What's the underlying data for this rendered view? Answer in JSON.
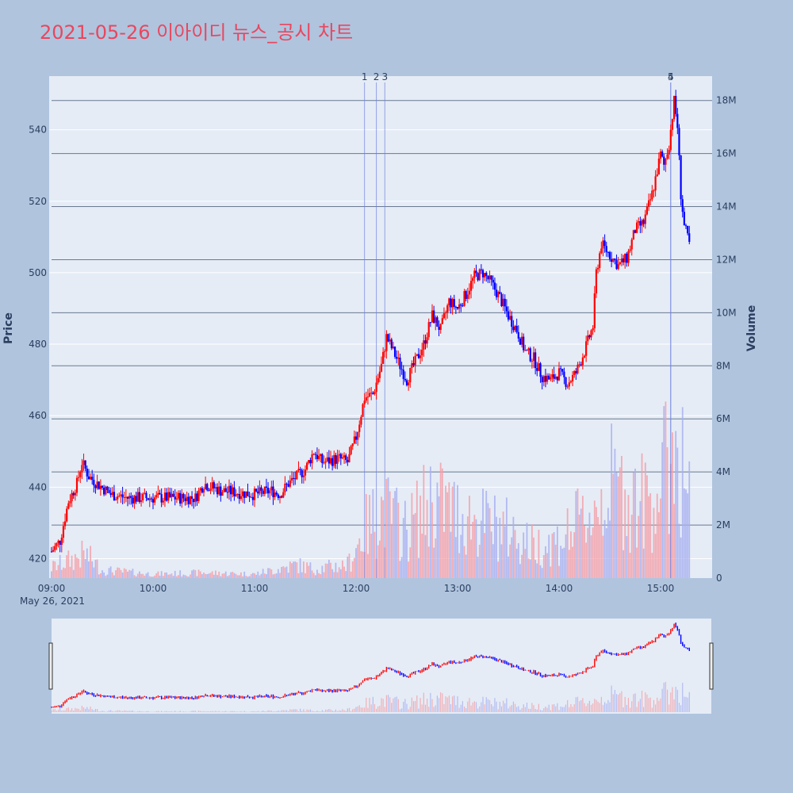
{
  "title": "2021-05-26 이아이디 뉴스_공시 차트",
  "colors": {
    "background": "#b0c4de",
    "plot_bg": "#e5ecf6",
    "title": "#e8475f",
    "up": "#ff0000",
    "down": "#0000ff",
    "up_volume": "#f4a0a8",
    "down_volume": "#a8b0f0",
    "marker_line": "#7080e0",
    "volume_grid": "#6a7890"
  },
  "chart_data": {
    "type": "candlestick",
    "price_axis": {
      "title": "Price",
      "range": [
        415,
        555
      ],
      "ticks": [
        420,
        440,
        460,
        480,
        500,
        520,
        540
      ]
    },
    "volume_axis": {
      "title": "Volume",
      "range": [
        0,
        18200000
      ],
      "ticks": [
        0,
        2000000,
        4000000,
        6000000,
        8000000,
        10000000,
        12000000,
        14000000,
        16000000,
        18000000
      ],
      "tick_labels": [
        "0",
        "2M",
        "4M",
        "6M",
        "8M",
        "10M",
        "12M",
        "14M",
        "16M",
        "18M"
      ]
    },
    "x_axis": {
      "range": [
        "09:00",
        "15:30"
      ],
      "ticks": [
        "09:00",
        "10:00",
        "11:00",
        "12:00",
        "13:00",
        "14:00",
        "15:00"
      ],
      "date_label": "May 26, 2021"
    },
    "news_markers": [
      {
        "label": "1",
        "time": "12:05"
      },
      {
        "label": "2",
        "time": "12:12"
      },
      {
        "label": "3",
        "time": "12:17"
      },
      {
        "label": "4",
        "time": "15:06"
      },
      {
        "label": "5",
        "time": "15:06"
      }
    ],
    "price_keypoints": [
      [
        "09:00",
        422
      ],
      [
        "09:05",
        425
      ],
      [
        "09:10",
        436
      ],
      [
        "09:15",
        441
      ],
      [
        "09:18",
        447
      ],
      [
        "09:22",
        443
      ],
      [
        "09:27",
        441
      ],
      [
        "09:35",
        438
      ],
      [
        "09:45",
        437
      ],
      [
        "10:00",
        437
      ],
      [
        "10:15",
        437
      ],
      [
        "10:25",
        437
      ],
      [
        "10:30",
        441
      ],
      [
        "10:40",
        439
      ],
      [
        "11:00",
        438
      ],
      [
        "11:10",
        439
      ],
      [
        "11:15",
        438
      ],
      [
        "11:20",
        441
      ],
      [
        "11:30",
        445
      ],
      [
        "11:35",
        450
      ],
      [
        "11:40",
        447
      ],
      [
        "11:50",
        448
      ],
      [
        "11:55",
        447
      ],
      [
        "12:00",
        454
      ],
      [
        "12:05",
        465
      ],
      [
        "12:10",
        466
      ],
      [
        "12:15",
        474
      ],
      [
        "12:18",
        482
      ],
      [
        "12:22",
        478
      ],
      [
        "12:30",
        470
      ],
      [
        "12:40",
        480
      ],
      [
        "12:45",
        488
      ],
      [
        "12:50",
        484
      ],
      [
        "12:55",
        492
      ],
      [
        "13:00",
        490
      ],
      [
        "13:05",
        494
      ],
      [
        "13:10",
        499
      ],
      [
        "13:15",
        500
      ],
      [
        "13:20",
        497
      ],
      [
        "13:25",
        493
      ],
      [
        "13:30",
        488
      ],
      [
        "13:35",
        484
      ],
      [
        "13:40",
        478
      ],
      [
        "13:45",
        476
      ],
      [
        "13:50",
        471
      ],
      [
        "13:55",
        470
      ],
      [
        "14:00",
        472
      ],
      [
        "14:05",
        469
      ],
      [
        "14:10",
        472
      ],
      [
        "14:15",
        478
      ],
      [
        "14:20",
        485
      ],
      [
        "14:22",
        500
      ],
      [
        "14:25",
        508
      ],
      [
        "14:30",
        505
      ],
      [
        "14:35",
        502
      ],
      [
        "14:40",
        504
      ],
      [
        "14:45",
        512
      ],
      [
        "14:50",
        514
      ],
      [
        "14:55",
        522
      ],
      [
        "15:00",
        533
      ],
      [
        "15:02",
        530
      ],
      [
        "15:05",
        536
      ],
      [
        "15:07",
        544
      ],
      [
        "15:08",
        548
      ],
      [
        "15:10",
        541
      ],
      [
        "15:12",
        522
      ],
      [
        "15:14",
        513
      ],
      [
        "15:17",
        508
      ]
    ],
    "volume_profile": [
      [
        "09:00",
        0.4
      ],
      [
        "09:20",
        0.9
      ],
      [
        "09:30",
        0.3
      ],
      [
        "10:00",
        0.15
      ],
      [
        "10:30",
        0.2
      ],
      [
        "11:00",
        0.15
      ],
      [
        "11:25",
        0.5
      ],
      [
        "11:35",
        0.35
      ],
      [
        "11:55",
        0.5
      ],
      [
        "12:05",
        1.8
      ],
      [
        "12:15",
        2.6
      ],
      [
        "12:30",
        1.8
      ],
      [
        "12:45",
        3.0
      ],
      [
        "13:00",
        2.4
      ],
      [
        "13:30",
        1.8
      ],
      [
        "13:45",
        1.2
      ],
      [
        "14:00",
        1.4
      ],
      [
        "14:20",
        2.5
      ],
      [
        "14:30",
        3.5
      ],
      [
        "14:50",
        2.8
      ],
      [
        "15:00",
        3.5
      ],
      [
        "15:05",
        4.5
      ],
      [
        "15:10",
        5.0
      ],
      [
        "15:17",
        3.2
      ]
    ]
  }
}
